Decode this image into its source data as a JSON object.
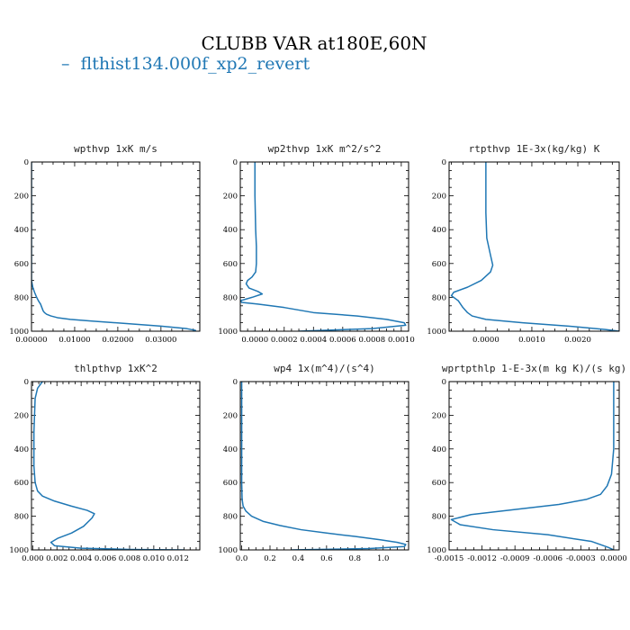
{
  "figure": {
    "title": "CLUBB VAR at180E,60N",
    "legend": {
      "marker": "–",
      "label": "flthist134.000f_xp2_revert",
      "color": "#1f77b4"
    }
  },
  "chart_data": [
    {
      "type": "line",
      "title": "wpthvp   1xK m/s",
      "xlim": [
        0,
        0.039
      ],
      "ylim": [
        0,
        1000
      ],
      "y_inverted": true,
      "xticks": [
        0,
        0.01,
        0.02,
        0.03
      ],
      "xtick_labels": [
        "0.00000",
        "0.01000",
        "0.02000",
        "0.03000"
      ],
      "yticks": [
        0,
        200,
        400,
        600,
        800,
        1000
      ],
      "ytick_labels": [
        "0",
        "200",
        "400",
        "600",
        "800",
        "1000"
      ],
      "series": [
        {
          "color": "#1f77b4",
          "x": [
            0,
            0,
            0,
            0,
            0,
            0,
            0,
            0,
            0.0003,
            0.0007,
            0.0012,
            0.0016,
            0.0021,
            0.0024,
            0.0027,
            0.003,
            0.0035,
            0.0045,
            0.006,
            0.009,
            0.014,
            0.022,
            0.03,
            0.036,
            0.038,
            0.0378
          ],
          "y": [
            0,
            100,
            200,
            300,
            400,
            500,
            600,
            700,
            740,
            770,
            800,
            820,
            840,
            860,
            880,
            890,
            900,
            910,
            920,
            930,
            940,
            955,
            970,
            985,
            995,
            1000
          ]
        }
      ]
    },
    {
      "type": "line",
      "title": "wp2thvp   1xK m^2/s^2",
      "xlim": [
        -0.0001,
        0.00105
      ],
      "ylim": [
        0,
        1000
      ],
      "y_inverted": true,
      "xticks": [
        0,
        0.0002,
        0.0004,
        0.0006,
        0.0008,
        0.001
      ],
      "xtick_labels": [
        "0.0000",
        "0.0002",
        "0.0004",
        "0.0006",
        "0.0008",
        "0.0010"
      ],
      "yticks": [
        0,
        200,
        400,
        600,
        800,
        1000
      ],
      "ytick_labels": [
        "0",
        "200",
        "400",
        "600",
        "800",
        "1000"
      ],
      "series": [
        {
          "color": "#1f77b4",
          "x": [
            0,
            0,
            5e-06,
            1e-05,
            1e-05,
            5e-06,
            -2e-05,
            -5e-05,
            -6e-05,
            -4e-05,
            2e-05,
            5e-05,
            -2e-05,
            -0.0001,
            -9e-05,
            2e-05,
            0.0002,
            0.0004,
            0.0007,
            0.0009,
            0.00102,
            0.00103,
            0.0008,
            0.0003
          ],
          "y": [
            0,
            200,
            400,
            500,
            600,
            650,
            680,
            700,
            720,
            745,
            765,
            780,
            800,
            820,
            830,
            840,
            860,
            890,
            910,
            930,
            950,
            965,
            985,
            1000
          ]
        }
      ]
    },
    {
      "type": "line",
      "title": "rtpthvp   1E-3x(kg/kg) K",
      "xlim": [
        -0.0008,
        0.0029
      ],
      "ylim": [
        0,
        1000
      ],
      "y_inverted": true,
      "xticks": [
        0,
        0.001,
        0.002
      ],
      "xtick_labels": [
        "0.0000",
        "0.0010",
        "0.0020"
      ],
      "yticks": [
        0,
        200,
        400,
        600,
        800,
        1000
      ],
      "ytick_labels": [
        "0",
        "200",
        "400",
        "600",
        "800",
        "1000"
      ],
      "series": [
        {
          "color": "#1f77b4",
          "x": [
            0,
            0,
            2e-05,
            0.0001,
            0.00015,
            0.0001,
            -0.0001,
            -0.0004,
            -0.0007,
            -0.00075,
            -0.0006,
            -0.0005,
            -0.0004,
            -0.0003,
            0,
            0.0008,
            0.0018,
            0.0026,
            0.0029
          ],
          "y": [
            0,
            300,
            450,
            550,
            610,
            650,
            700,
            740,
            770,
            790,
            820,
            860,
            890,
            910,
            930,
            950,
            970,
            990,
            1000
          ]
        }
      ]
    },
    {
      "type": "line",
      "title": "thlpthvp   1xK^2",
      "xlim": [
        -0.0001,
        0.0138
      ],
      "ylim": [
        0,
        1000
      ],
      "y_inverted": true,
      "xticks": [
        0,
        0.002,
        0.004,
        0.006,
        0.008,
        0.01,
        0.012
      ],
      "xtick_labels": [
        "0.000",
        "0.002",
        "0.004",
        "0.006",
        "0.008",
        "0.010",
        "0.012"
      ],
      "yticks": [
        0,
        200,
        400,
        600,
        800,
        1000
      ],
      "ytick_labels": [
        "0",
        "200",
        "400",
        "600",
        "800",
        "1000"
      ],
      "series": [
        {
          "color": "#1f77b4",
          "x": [
            0.0008,
            0.0004,
            0.0002,
            0.0001,
            0.0001,
            0.0002,
            0.0004,
            0.0008,
            0.0018,
            0.0032,
            0.0045,
            0.0051,
            0.0049,
            0.0042,
            0.0032,
            0.0021,
            0.0015,
            0.0018,
            0.004,
            0.008,
            0.0125
          ],
          "y": [
            0,
            40,
            100,
            300,
            500,
            600,
            650,
            680,
            710,
            740,
            765,
            785,
            810,
            860,
            900,
            930,
            955,
            975,
            990,
            997,
            1000
          ]
        }
      ]
    },
    {
      "type": "line",
      "title": "wp4   1x(m^4)/(s^4)",
      "xlim": [
        -0.01,
        1.18
      ],
      "ylim": [
        0,
        1000
      ],
      "y_inverted": true,
      "xticks": [
        0,
        0.2,
        0.4,
        0.6,
        0.8,
        1.0
      ],
      "xtick_labels": [
        "0.0",
        "0.2",
        "0.4",
        "0.6",
        "0.8",
        "1.0"
      ],
      "yticks": [
        0,
        200,
        400,
        600,
        800,
        1000
      ],
      "ytick_labels": [
        "0",
        "200",
        "400",
        "600",
        "800",
        "1000"
      ],
      "series": [
        {
          "color": "#1f77b4",
          "x": [
            0,
            0,
            0,
            0.003,
            0.01,
            0.03,
            0.07,
            0.15,
            0.27,
            0.42,
            0.6,
            0.8,
            0.98,
            1.1,
            1.16,
            1.15,
            0.9,
            0.35
          ],
          "y": [
            0,
            300,
            600,
            700,
            740,
            770,
            800,
            830,
            855,
            880,
            900,
            920,
            940,
            955,
            968,
            980,
            992,
            1000
          ]
        }
      ]
    },
    {
      "type": "line",
      "title": "wprtpthlp   1-E-3x(m kg K)/(s kg)",
      "xlim": [
        -0.0015,
        5e-05
      ],
      "ylim": [
        0,
        1000
      ],
      "y_inverted": true,
      "xticks": [
        -0.0015,
        -0.0012,
        -0.0009,
        -0.0006,
        -0.0003,
        0
      ],
      "xtick_labels": [
        "-0.0015",
        "-0.0012",
        "-0.0009",
        "-0.0006",
        "-0.0003",
        "0.0000"
      ],
      "yticks": [
        0,
        200,
        400,
        600,
        800,
        1000
      ],
      "ytick_labels": [
        "0",
        "200",
        "400",
        "600",
        "800",
        "1000"
      ],
      "series": [
        {
          "color": "#1f77b4",
          "x": [
            0,
            0,
            -2e-05,
            -6e-05,
            -0.00012,
            -0.00025,
            -0.0005,
            -0.0009,
            -0.0013,
            -0.00148,
            -0.0014,
            -0.0011,
            -0.0006,
            -0.0002,
            -5e-05,
            0
          ],
          "y": [
            0,
            400,
            550,
            620,
            670,
            700,
            730,
            760,
            790,
            820,
            850,
            880,
            910,
            950,
            985,
            1000
          ]
        }
      ]
    }
  ]
}
